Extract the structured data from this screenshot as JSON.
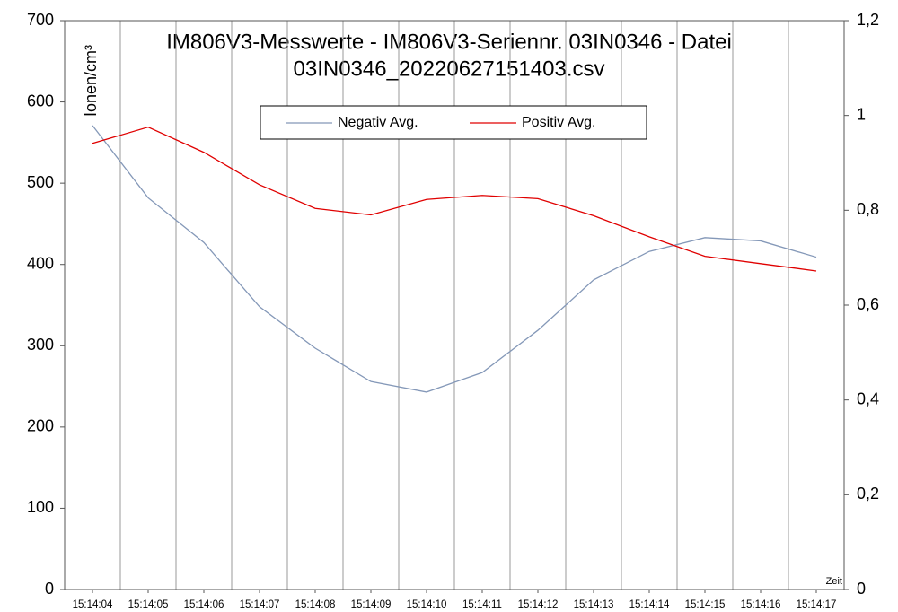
{
  "chart_data": {
    "type": "line",
    "title": "IM806V3-Messwerte - IM806V3-Seriennr. 03IN0346 - Datei",
    "subtitle": "03IN0346_20220627151403.csv",
    "y_label": "Ionen/cm³",
    "x_label": "Zeit",
    "categories": [
      "15:14:04",
      "15:14:05",
      "15:14:06",
      "15:14:07",
      "15:14:08",
      "15:14:09",
      "15:14:10",
      "15:14:11",
      "15:14:12",
      "15:14:13",
      "15:14:14",
      "15:14:15",
      "15:14:16",
      "15:14:17"
    ],
    "series": [
      {
        "name": "Negativ Avg.",
        "color": "#8498b8",
        "values": [
          571,
          482,
          427,
          348,
          297,
          256,
          243,
          267,
          319,
          381,
          416,
          433,
          429,
          409
        ]
      },
      {
        "name": "Positiv Avg.",
        "color": "#e00000",
        "values": [
          549,
          569,
          538,
          498,
          469,
          461,
          480,
          485,
          481,
          460,
          434,
          410,
          401,
          392
        ]
      }
    ],
    "ylim": [
      0,
      700
    ],
    "yticks": [
      0,
      100,
      200,
      300,
      400,
      500,
      600,
      700
    ],
    "y2lim": [
      0,
      1.2
    ],
    "y2ticks": [
      0,
      {
        "value": 0.2,
        "label": "0,2"
      },
      {
        "value": 0.4,
        "label": "0,4"
      },
      {
        "value": 0.6,
        "label": "0,6"
      },
      {
        "value": 0.8,
        "label": "0,8"
      },
      1,
      {
        "value": 1.2,
        "label": "1,2"
      }
    ],
    "grid": true,
    "legend": "top"
  }
}
